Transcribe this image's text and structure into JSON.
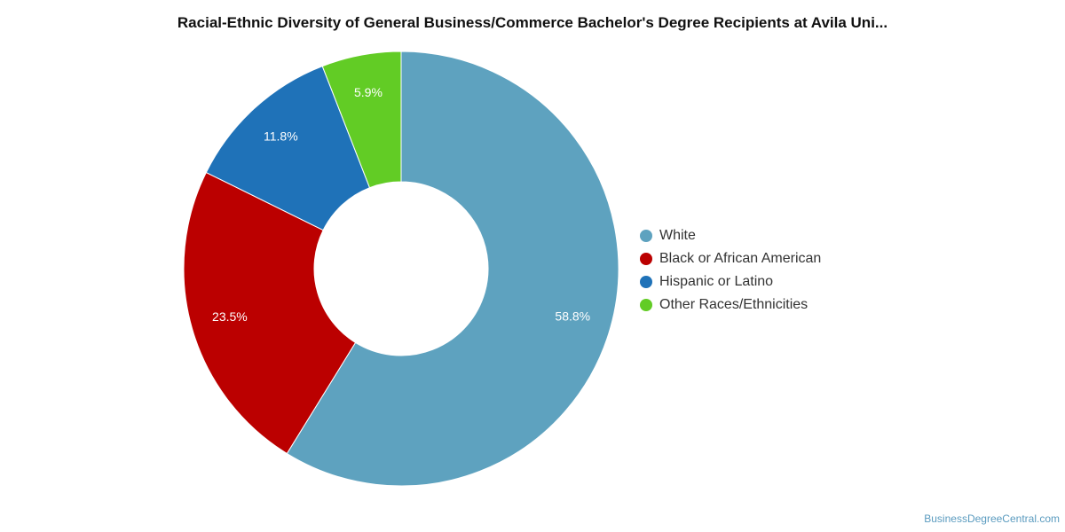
{
  "chart_data": {
    "type": "pie",
    "title": "Racial-Ethnic Diversity of General Business/Commerce Bachelor's Degree Recipients at Avila Uni...",
    "donut": true,
    "legend_position": "right",
    "slices": [
      {
        "name": "White",
        "value": 58.8,
        "label": "58.8%",
        "color": "#5ea2bf"
      },
      {
        "name": "Black or African American",
        "value": 23.5,
        "label": "23.5%",
        "color": "#bb0000"
      },
      {
        "name": "Hispanic or Latino",
        "value": 11.8,
        "label": "11.8%",
        "color": "#1f72b8"
      },
      {
        "name": "Other Races/Ethnicities",
        "value": 5.9,
        "label": "5.9%",
        "color": "#62cc25"
      }
    ]
  },
  "footer": {
    "credit": "BusinessDegreeCentral.com"
  }
}
